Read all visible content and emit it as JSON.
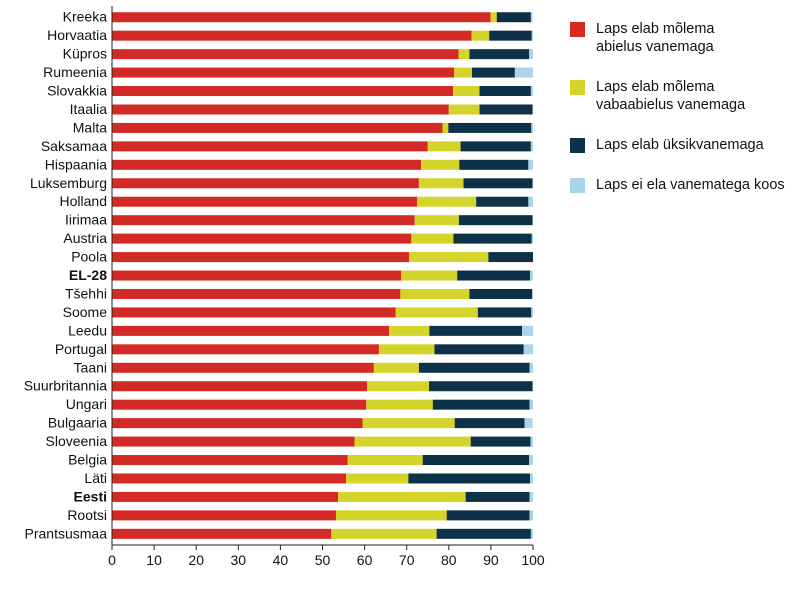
{
  "chart_data": {
    "type": "bar",
    "orientation": "horizontal",
    "stacked": true,
    "categories": [
      "Kreeka",
      "Horvaatia",
      "Küpros",
      "Rumeenia",
      "Slovakkia",
      "Itaalia",
      "Malta",
      "Saksamaa",
      "Hispaania",
      "Luksemburg",
      "Holland",
      "Iirimaa",
      "Austria",
      "Poola",
      "EL-28",
      "Tšehhi",
      "Soome",
      "Leedu",
      "Portugal",
      "Taani",
      "Suurbritannia",
      "Ungari",
      "Bulgaaria",
      "Sloveenia",
      "Belgia",
      "Läti",
      "Eesti",
      "Rootsi",
      "Prantsusmaa"
    ],
    "bold_categories": [
      "EL-28",
      "Eesti"
    ],
    "xlim": [
      0,
      100
    ],
    "xticks": [
      "0",
      "10",
      "20",
      "30",
      "40",
      "50",
      "60",
      "70",
      "80",
      "90",
      "100"
    ],
    "grid": false,
    "legend_position": "right",
    "series": [
      {
        "name": "Laps elab mõlema abielus vanemaga",
        "color": "#d42a25",
        "values": [
          89.9,
          85.4,
          82.3,
          81.3,
          81.0,
          80.0,
          78.5,
          75.0,
          73.4,
          72.9,
          72.5,
          71.9,
          71.1,
          70.6,
          68.7,
          68.5,
          67.4,
          65.8,
          63.4,
          62.2,
          60.6,
          60.4,
          59.5,
          57.6,
          56.0,
          55.6,
          53.7,
          53.2,
          52.1
        ]
      },
      {
        "name": "Laps elab mõlema vabaabielus vanemaga",
        "color": "#d4d42a",
        "values": [
          1.5,
          4.2,
          2.6,
          4.2,
          6.3,
          7.3,
          1.4,
          7.8,
          9.1,
          10.6,
          14.0,
          10.5,
          10.0,
          18.8,
          13.3,
          16.4,
          19.5,
          9.6,
          13.2,
          10.7,
          14.7,
          15.8,
          21.9,
          27.6,
          17.8,
          14.8,
          30.3,
          26.3,
          25.0
        ]
      },
      {
        "name": "Laps elab üksikvanemaga",
        "color": "#0d3147",
        "values": [
          8.1,
          10.1,
          14.2,
          10.2,
          12.2,
          12.6,
          19.7,
          16.7,
          16.4,
          16.4,
          12.4,
          17.5,
          18.6,
          10.6,
          17.3,
          14.9,
          12.7,
          22.0,
          21.2,
          26.3,
          24.6,
          23.0,
          16.6,
          14.2,
          25.3,
          28.9,
          15.2,
          19.7,
          22.4
        ]
      },
      {
        "name": "Laps ei ela vanematega koos",
        "color": "#a8d5ea",
        "values": [
          0.4,
          0.3,
          0.9,
          4.3,
          0.5,
          0.1,
          0.4,
          0.5,
          1.1,
          0.1,
          1.1,
          0.1,
          0.3,
          0.0,
          0.7,
          0.2,
          0.4,
          2.6,
          2.2,
          0.8,
          0.1,
          0.8,
          1.9,
          0.6,
          0.9,
          0.7,
          0.8,
          0.8,
          0.5
        ]
      }
    ]
  },
  "legend": {
    "items": [
      {
        "line1": "Laps elab mõlema",
        "line2": "abielus vanemaga",
        "color": "#d42a25"
      },
      {
        "line1": "Laps elab mõlema",
        "line2": "vabaabielus vanemaga",
        "color": "#d4d42a"
      },
      {
        "line1": "Laps elab üksikvanemaga",
        "line2": "",
        "color": "#0d3147"
      },
      {
        "line1": "Laps ei ela vanematega koos",
        "line2": "",
        "color": "#a8d5ea"
      }
    ]
  }
}
